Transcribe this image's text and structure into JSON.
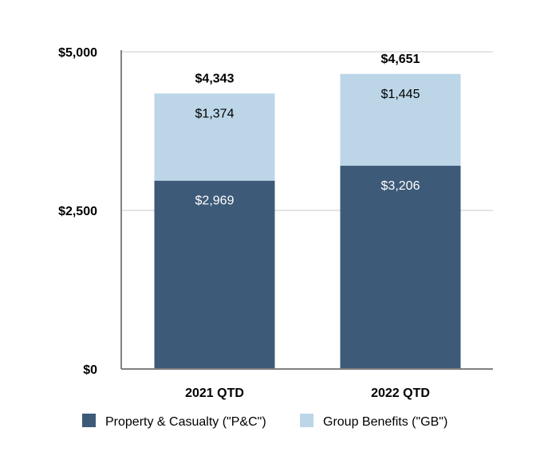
{
  "chart_data": {
    "type": "bar",
    "stacked": true,
    "title": "",
    "xlabel": "",
    "ylabel": "",
    "categories": [
      "2021 QTD",
      "2022 QTD"
    ],
    "series": [
      {
        "name": "Property & Casualty (\"P&C\")",
        "values": [
          2969,
          3206
        ],
        "labels": [
          "$2,969",
          "$3,206"
        ],
        "color": "#3d5a78",
        "label_color": "#ffffff"
      },
      {
        "name": "Group Benefits (\"GB\")",
        "values": [
          1374,
          1445
        ],
        "labels": [
          "$1,374",
          "$1,445"
        ],
        "color": "#bcd6e8",
        "label_color": "#000000"
      }
    ],
    "totals": [
      4343,
      4651
    ],
    "total_labels": [
      "$4,343",
      "$4,651"
    ],
    "ylim": [
      0,
      5000
    ],
    "yticks": [
      0,
      2500,
      5000
    ],
    "ytick_labels": [
      "$0",
      "$2,500",
      "$5,000"
    ],
    "grid": true,
    "legend_position": "bottom"
  }
}
